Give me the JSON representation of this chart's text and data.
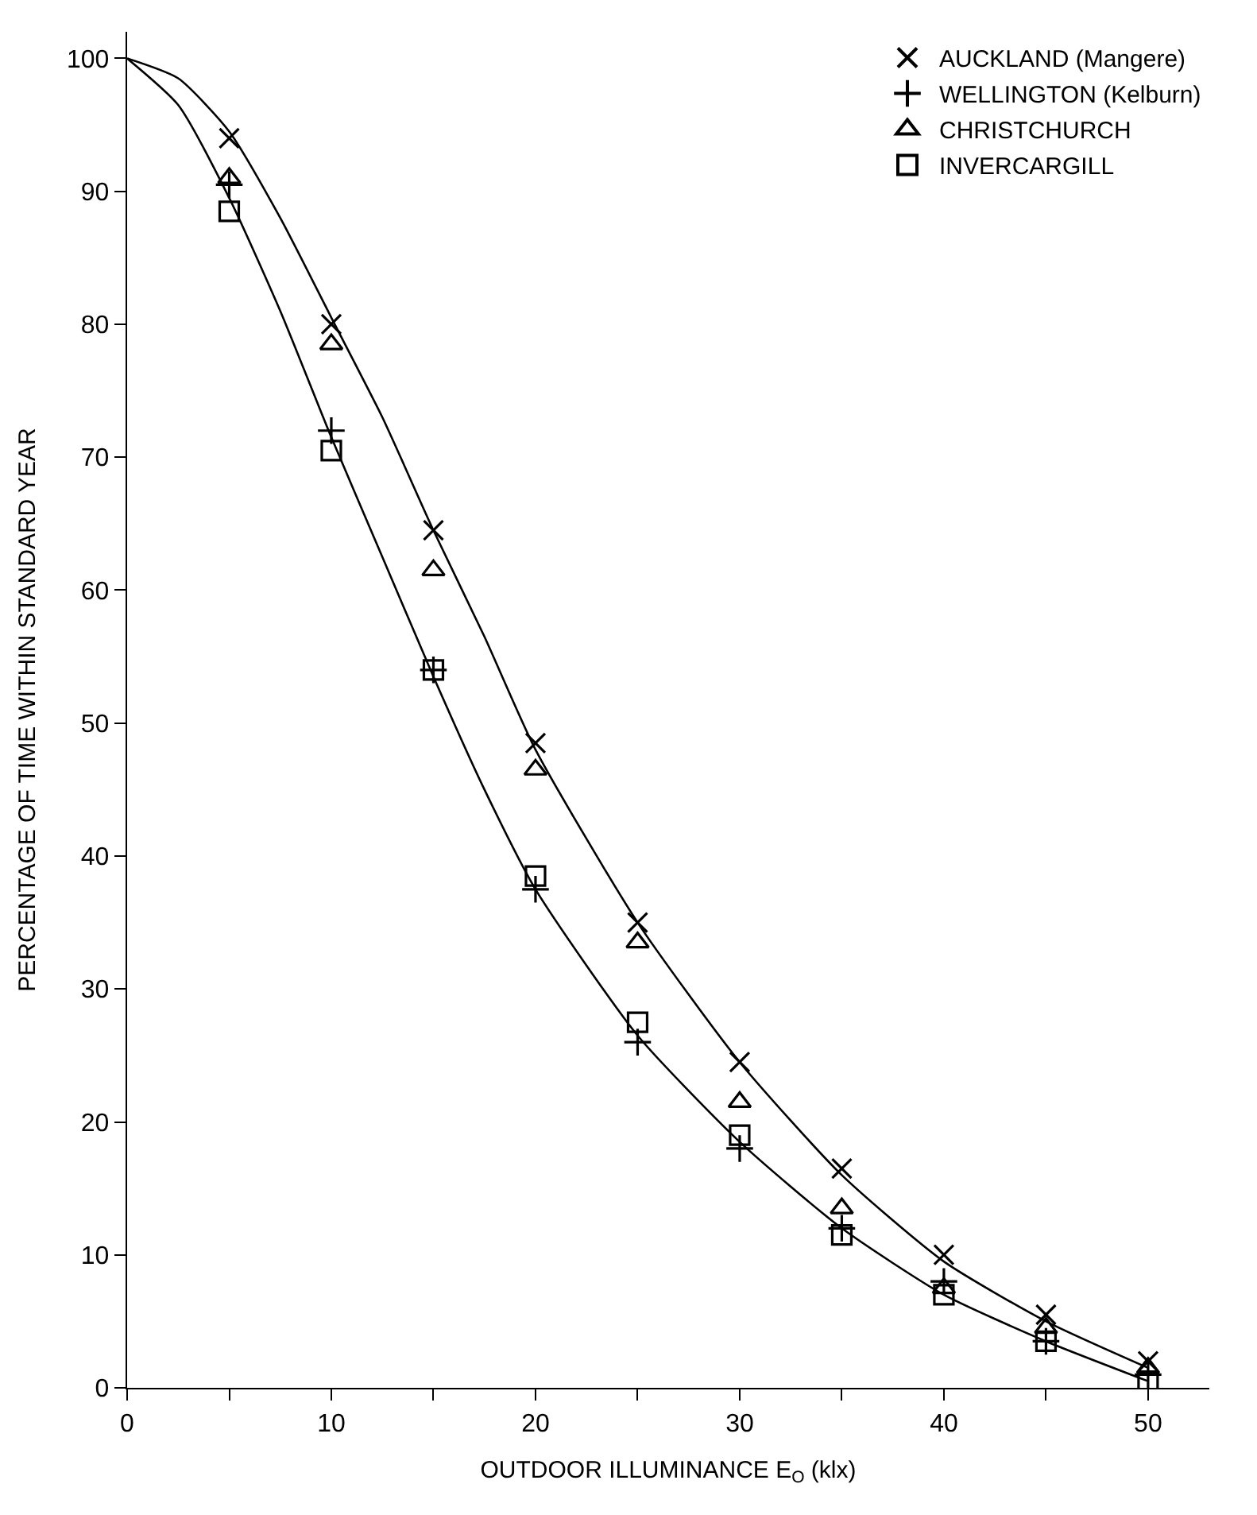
{
  "chart_data": {
    "type": "scatter",
    "xlabel": "OUTDOOR ILLUMINANCE E$_{O}$ (klx)",
    "ylabel": "PERCENTAGE OF TIME WITHIN STANDARD YEAR",
    "x": [
      5,
      10,
      15,
      20,
      25,
      30,
      35,
      40,
      45,
      50
    ],
    "series": [
      {
        "name": "AUCKLAND (Mangere)",
        "color": "#000000",
        "marker": "x",
        "values": [
          94,
          80,
          64.5,
          48.5,
          35,
          24.5,
          16.5,
          10,
          5.5,
          2
        ]
      },
      {
        "name": "WELLINGTON (Kelburn)",
        "color": "#000000",
        "marker": "cross",
        "values": [
          90.5,
          72,
          54,
          37.5,
          26,
          18,
          12,
          8,
          3.5,
          1
        ]
      },
      {
        "name": "CHRISTCHURCH",
        "color": "#000000",
        "marker": "triangle",
        "values": [
          91,
          78.5,
          61.5,
          46.5,
          33.5,
          21.5,
          13.5,
          7.5,
          4.5,
          1.5
        ]
      },
      {
        "name": "INVERCARGILL",
        "color": "#000000",
        "marker": "square",
        "values": [
          88.5,
          70.5,
          54,
          38.5,
          27.5,
          19,
          11.5,
          7,
          3.5,
          0.5
        ]
      },
      {
        "type": "line",
        "color": "#000000",
        "marker": "none",
        "line_style": "solid",
        "x": [
          0,
          2.5,
          5,
          7.5,
          10,
          12.5,
          15,
          17.5,
          20,
          25,
          30,
          35,
          40,
          45,
          50
        ],
        "values": [
          100,
          98.5,
          94.5,
          88,
          80.5,
          73,
          64.5,
          56.5,
          48,
          35,
          24.5,
          16,
          9.5,
          5,
          1.5
        ]
      },
      {
        "type": "line",
        "color": "#000000",
        "marker": "none",
        "line_style": "solid",
        "x": [
          0,
          2.5,
          5,
          7.5,
          10,
          12.5,
          15,
          17.5,
          20,
          25,
          30,
          35,
          40,
          45,
          50
        ],
        "values": [
          100,
          96.5,
          89.5,
          81,
          71.5,
          62.5,
          53.5,
          45,
          37.5,
          26.5,
          18.5,
          12,
          7,
          3.5,
          0.5
        ]
      }
    ],
    "xlim": [
      0,
      53
    ],
    "ylim": [
      0,
      102
    ],
    "xticks": [
      0,
      {
        "value": 5,
        "label": null
      },
      10,
      {
        "value": 15,
        "label": null
      },
      20,
      {
        "value": 25,
        "label": null
      },
      30,
      {
        "value": 35,
        "label": null
      },
      40,
      {
        "value": 45,
        "label": null
      },
      50
    ],
    "yticks": [
      0,
      10,
      20,
      30,
      40,
      50,
      60,
      70,
      80,
      90,
      100
    ],
    "legend": "top right"
  }
}
